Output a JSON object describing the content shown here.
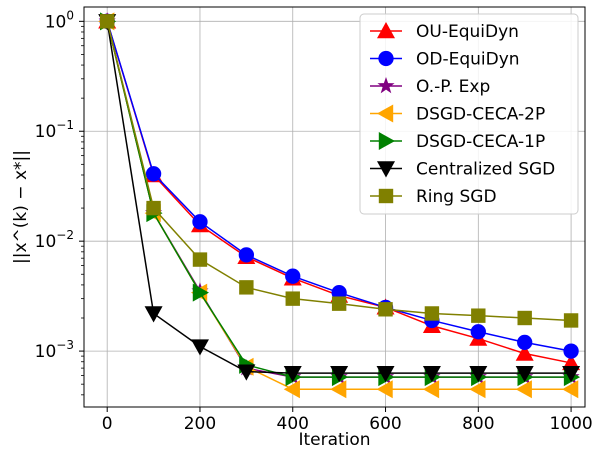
{
  "chart_data": {
    "type": "line",
    "xlabel": "Iteration",
    "ylabel": "||x^(k) − x*||",
    "yscale": "log",
    "xlim": [
      -50,
      1030
    ],
    "ylim": [
      0.00031,
      1.35
    ],
    "x_ticks": [
      0,
      200,
      400,
      600,
      800,
      1000
    ],
    "y_ticks": [
      {
        "value": 1,
        "base": "10",
        "exp": "0"
      },
      {
        "value": 0.1,
        "base": "10",
        "exp": "−1"
      },
      {
        "value": 0.01,
        "base": "10",
        "exp": "−2"
      },
      {
        "value": 0.001,
        "base": "10",
        "exp": "−3"
      }
    ],
    "grid": true,
    "legend_position": "top-right",
    "series": [
      {
        "name": "OU-EquiDyn",
        "color": "#ff0000",
        "marker": "triangle-up",
        "x": [
          0,
          100,
          200,
          300,
          400,
          500,
          600,
          700,
          800,
          900,
          1000
        ],
        "y": [
          1.0,
          0.04,
          0.014,
          0.0072,
          0.0046,
          0.0032,
          0.0025,
          0.0017,
          0.0013,
          0.00095,
          0.00078
        ]
      },
      {
        "name": "OD-EquiDyn",
        "color": "#0000ff",
        "marker": "circle",
        "x": [
          0,
          100,
          200,
          300,
          400,
          500,
          600,
          700,
          800,
          900,
          1000
        ],
        "y": [
          1.0,
          0.041,
          0.015,
          0.0075,
          0.0048,
          0.0034,
          0.0025,
          0.0019,
          0.0015,
          0.0012,
          0.001
        ]
      },
      {
        "name": "O.-P. Exp",
        "color": "#800080",
        "marker": "star",
        "x": [
          0,
          100,
          200,
          300,
          400,
          500,
          600,
          700,
          800,
          900,
          1000
        ],
        "y": [
          1.0,
          0.018,
          0.0035,
          0.0007,
          0.00058,
          0.00058,
          0.00058,
          0.00058,
          0.00058,
          0.00058,
          0.00058
        ]
      },
      {
        "name": "DSGD-CECA-2P",
        "color": "#ffa500",
        "marker": "triangle-left",
        "x": [
          0,
          100,
          200,
          300,
          400,
          500,
          600,
          700,
          800,
          900,
          1000
        ],
        "y": [
          1.0,
          0.018,
          0.0034,
          0.00072,
          0.00045,
          0.00045,
          0.00045,
          0.00045,
          0.00045,
          0.00045,
          0.00045
        ]
      },
      {
        "name": "DSGD-CECA-1P",
        "color": "#008000",
        "marker": "triangle-right",
        "x": [
          0,
          100,
          200,
          300,
          400,
          500,
          600,
          700,
          800,
          900,
          1000
        ],
        "y": [
          1.0,
          0.018,
          0.0034,
          0.00075,
          0.00058,
          0.00058,
          0.00058,
          0.00058,
          0.00058,
          0.00058,
          0.00058
        ]
      },
      {
        "name": "Centralized SGD",
        "color": "#000000",
        "marker": "triangle-down",
        "x": [
          0,
          100,
          200,
          300,
          400,
          500,
          600,
          700,
          800,
          900,
          1000
        ],
        "y": [
          1.0,
          0.0022,
          0.0011,
          0.00065,
          0.00063,
          0.00063,
          0.00063,
          0.00063,
          0.00063,
          0.00063,
          0.00063
        ]
      },
      {
        "name": "Ring SGD",
        "color": "#808000",
        "marker": "square",
        "x": [
          0,
          100,
          200,
          300,
          400,
          500,
          600,
          700,
          800,
          900,
          1000
        ],
        "y": [
          1.0,
          0.02,
          0.0068,
          0.0038,
          0.003,
          0.0027,
          0.0024,
          0.0022,
          0.0021,
          0.002,
          0.0019
        ]
      }
    ]
  }
}
